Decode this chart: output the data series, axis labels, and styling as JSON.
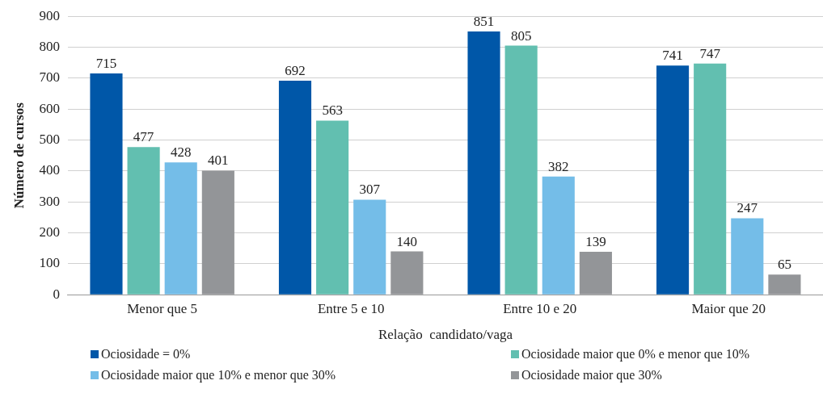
{
  "chart_data": {
    "type": "bar",
    "xlabel": "Relação  candidato/vaga",
    "ylabel": "Número de cursos",
    "categories": [
      "Menor que 5",
      "Entre 5 e 10",
      "Entre 10 e 20",
      "Maior que 20"
    ],
    "series": [
      {
        "name": "Ociosidade = 0%",
        "color": "#0057a8",
        "values": [
          715,
          692,
          851,
          741
        ]
      },
      {
        "name": "Ociosidade maior que 0% e menor que 10%",
        "color": "#62bfb0",
        "values": [
          477,
          563,
          805,
          747
        ]
      },
      {
        "name": "Ociosidade maior que 10% e menor que 30%",
        "color": "#74bde8",
        "values": [
          428,
          307,
          382,
          247
        ]
      },
      {
        "name": "Ociosidade maior que 30%",
        "color": "#939598",
        "values": [
          401,
          140,
          139,
          65
        ]
      }
    ],
    "ylim": [
      0,
      900
    ],
    "yticks": [
      0,
      100,
      200,
      300,
      400,
      500,
      600,
      700,
      800,
      900
    ],
    "grid": "y",
    "legend": "bottom",
    "data_labels": true
  }
}
